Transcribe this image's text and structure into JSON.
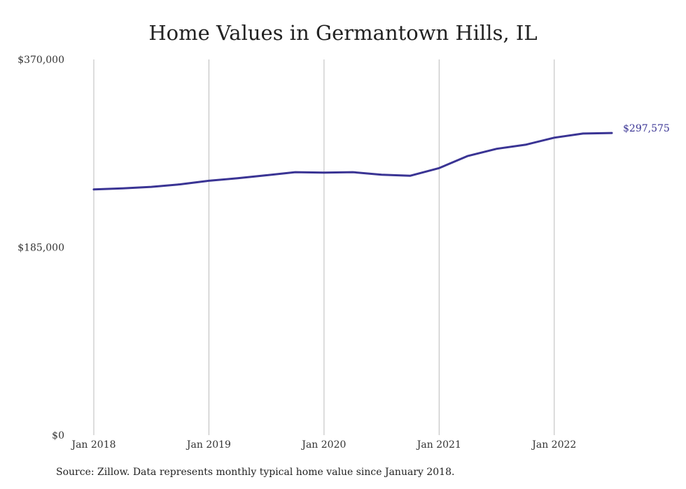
{
  "chart_data": {
    "type": "line",
    "title": "Home Values in Germantown Hills, IL",
    "xlabel": "",
    "ylabel": "",
    "ylim": [
      0,
      370000
    ],
    "y_ticks": [
      "$370,000",
      "$185,000",
      "$0"
    ],
    "y_tick_values": [
      370000,
      185000,
      0
    ],
    "x_ticks": [
      "Jan 2018",
      "Jan 2019",
      "Jan 2020",
      "Jan 2021",
      "Jan 2022"
    ],
    "x_tick_values": [
      "2018-01",
      "2019-01",
      "2020-01",
      "2021-01",
      "2022-01"
    ],
    "x_range": [
      "2018-01",
      "2022-07"
    ],
    "grid": "vertical",
    "line_color": "#3a3494",
    "grid_color": "#bbbbbb",
    "end_label": "$297,575",
    "series": [
      {
        "x": [
          "2018-01",
          "2018-04",
          "2018-07",
          "2018-10",
          "2019-01",
          "2019-04",
          "2019-07",
          "2019-10",
          "2020-01",
          "2020-04",
          "2020-07",
          "2020-10",
          "2021-01",
          "2021-04",
          "2021-07",
          "2021-10",
          "2022-01",
          "2022-04",
          "2022-07"
        ],
        "values": [
          242000,
          243000,
          244500,
          247000,
          250500,
          253000,
          256000,
          259000,
          258500,
          259000,
          256500,
          255500,
          263000,
          275000,
          282000,
          286000,
          293000,
          297000,
          297575
        ]
      }
    ]
  },
  "source_note": "Source: Zillow. Data represents monthly typical home value since January 2018."
}
